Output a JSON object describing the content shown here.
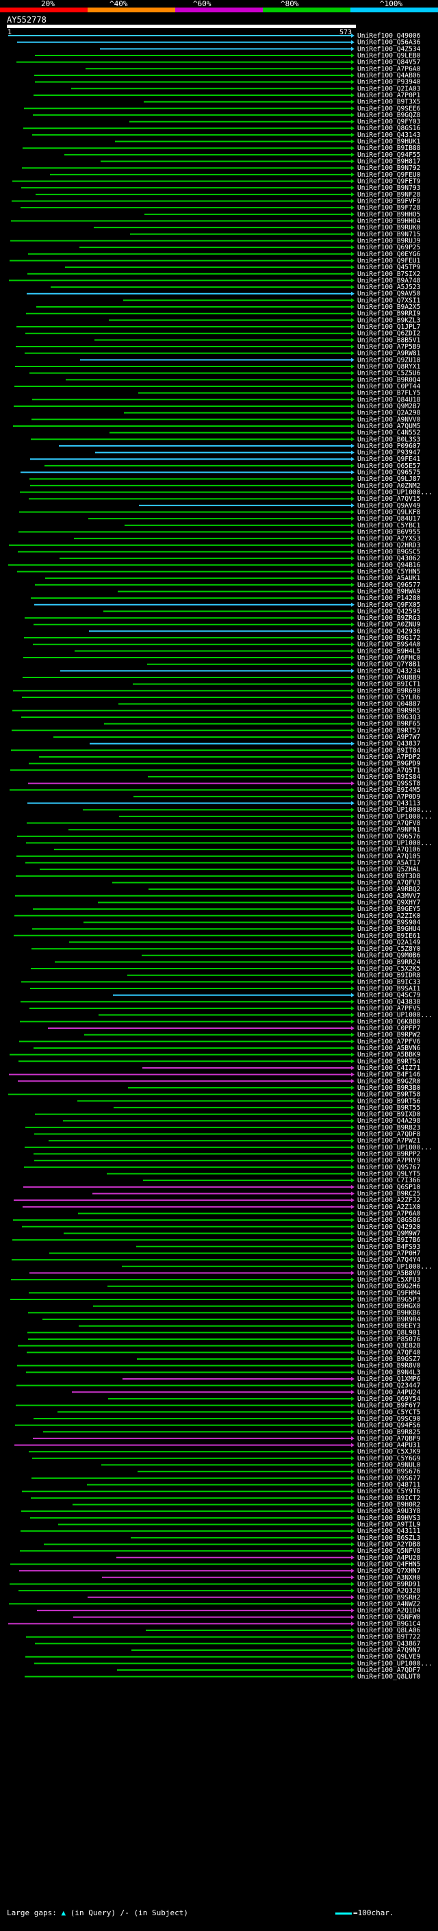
{
  "header": {
    "query_id": "AY552778",
    "query_start": "1",
    "query_end": "573",
    "scale_labels": [
      "20%",
      "^40%",
      "^60%",
      "^80%",
      "^100%"
    ],
    "scale_colors": [
      "#ff0000",
      "#ff8800",
      "#cc00cc",
      "#00cc00",
      "#00ccff"
    ]
  },
  "legend": {
    "text_left": "Large gaps:",
    "marker": "▲",
    "in_query": "(in Query)",
    "slash_note": "/- (in Subject)",
    "scale_note": "=100char."
  },
  "hits": [
    {
      "id": "UniRef100_Q49006",
      "color": "cyan"
    },
    {
      "id": "UniRef100_Q56A36",
      "color": "cyan"
    },
    {
      "id": "UniRef100_Q4Z534",
      "color": "cyan"
    },
    {
      "id": "UniRef100_Q9LEB0",
      "color": "green"
    },
    {
      "id": "UniRef100_Q84V57",
      "color": "green"
    },
    {
      "id": "UniRef100_A7P6A0",
      "color": "green"
    },
    {
      "id": "UniRef100_Q4AB06",
      "color": "green"
    },
    {
      "id": "UniRef100_P93940",
      "color": "green"
    },
    {
      "id": "UniRef100_Q2IA03",
      "color": "green"
    },
    {
      "id": "UniRef100_A7P0P1",
      "color": "green"
    },
    {
      "id": "UniRef100_B9T3X5",
      "color": "green"
    },
    {
      "id": "UniRef100_Q9SEE6",
      "color": "green"
    },
    {
      "id": "UniRef100_B9GQZ8",
      "color": "green"
    },
    {
      "id": "UniRef100_Q9FY03",
      "color": "green"
    },
    {
      "id": "UniRef100_Q8GS16",
      "color": "green"
    },
    {
      "id": "UniRef100_Q43143",
      "color": "green"
    },
    {
      "id": "UniRef100_B9HUK1",
      "color": "green"
    },
    {
      "id": "UniRef100_B9IB88",
      "color": "green"
    },
    {
      "id": "UniRef100_Q94F55",
      "color": "green"
    },
    {
      "id": "UniRef100_B9H817",
      "color": "green"
    },
    {
      "id": "UniRef100_B9N792",
      "color": "green"
    },
    {
      "id": "UniRef100_Q9FEU0",
      "color": "green"
    },
    {
      "id": "UniRef100_Q9FET9",
      "color": "green"
    },
    {
      "id": "UniRef100_B9N793",
      "color": "green"
    },
    {
      "id": "UniRef100_B9NF28",
      "color": "green"
    },
    {
      "id": "UniRef100_B9FVF9",
      "color": "green"
    },
    {
      "id": "UniRef100_B9F728",
      "color": "green"
    },
    {
      "id": "UniRef100_B9HHO5",
      "color": "green"
    },
    {
      "id": "UniRef100_B9HHO4",
      "color": "green"
    },
    {
      "id": "UniRef100_B9RUK0",
      "color": "green"
    },
    {
      "id": "UniRef100_B9N715",
      "color": "green"
    },
    {
      "id": "UniRef100_B9RUJ9",
      "color": "green"
    },
    {
      "id": "UniRef100_Q69P25",
      "color": "green"
    },
    {
      "id": "UniRef100_Q0EYG6",
      "color": "green"
    },
    {
      "id": "UniRef100_Q9FEU1",
      "color": "green"
    },
    {
      "id": "UniRef100_Q45TP9",
      "color": "green"
    },
    {
      "id": "UniRef100_B7SIX2",
      "color": "green"
    },
    {
      "id": "UniRef100_B9A748",
      "color": "green"
    },
    {
      "id": "UniRef100_A5J523",
      "color": "green"
    },
    {
      "id": "UniRef100_Q9AV50",
      "color": "cyan"
    },
    {
      "id": "UniRef100_Q7XSI1",
      "color": "green"
    },
    {
      "id": "UniRef100_B9A2X5",
      "color": "green"
    },
    {
      "id": "UniRef100_B9RRI9",
      "color": "green"
    },
    {
      "id": "UniRef100_B9KZL3",
      "color": "green"
    },
    {
      "id": "UniRef100_Q1JPL7",
      "color": "green"
    },
    {
      "id": "UniRef100_Q6ZDI2",
      "color": "green"
    },
    {
      "id": "UniRef100_B8B5V1",
      "color": "green"
    },
    {
      "id": "UniRef100_A7P5B9",
      "color": "green"
    },
    {
      "id": "UniRef100_A9RW81",
      "color": "green"
    },
    {
      "id": "UniRef100_Q9ZU18",
      "color": "cyan"
    },
    {
      "id": "UniRef100_Q8RYX1",
      "color": "green"
    },
    {
      "id": "UniRef100_C5Z5U6",
      "color": "green"
    },
    {
      "id": "UniRef100_B9R0Q4",
      "color": "green"
    },
    {
      "id": "UniRef100_C0PT44",
      "color": "green"
    },
    {
      "id": "UniRef100_B7FLY5",
      "color": "green"
    },
    {
      "id": "UniRef100_Q84U18",
      "color": "green"
    },
    {
      "id": "UniRef100_Q9M2B7",
      "color": "green"
    },
    {
      "id": "UniRef100_Q2A298",
      "color": "green"
    },
    {
      "id": "UniRef100_A9NVV0",
      "color": "green"
    },
    {
      "id": "UniRef100_A7QUM5",
      "color": "green"
    },
    {
      "id": "UniRef100_C4N552",
      "color": "green"
    },
    {
      "id": "UniRef100_B0L3S3",
      "color": "green"
    },
    {
      "id": "UniRef100_P09607",
      "color": "cyan"
    },
    {
      "id": "UniRef100_P93947",
      "color": "cyan"
    },
    {
      "id": "UniRef100_Q9FE41",
      "color": "cyan"
    },
    {
      "id": "UniRef100_O65E57",
      "color": "green"
    },
    {
      "id": "UniRef100_Q96575",
      "color": "cyan"
    },
    {
      "id": "UniRef100_Q9LJ87",
      "color": "green"
    },
    {
      "id": "UniRef100_A0ZNM2",
      "color": "green"
    },
    {
      "id": "UniRef100_UP1000...",
      "color": "green"
    },
    {
      "id": "UniRef100_A7QV15",
      "color": "green"
    },
    {
      "id": "UniRef100_Q9AV49",
      "color": "cyan"
    },
    {
      "id": "UniRef100_Q9LKF8",
      "color": "green"
    },
    {
      "id": "UniRef100_Q84U17",
      "color": "green"
    },
    {
      "id": "UniRef100_C5YBC1",
      "color": "green"
    },
    {
      "id": "UniRef100_B6V955",
      "color": "green"
    },
    {
      "id": "UniRef100_A2YXS3",
      "color": "green"
    },
    {
      "id": "UniRef100_Q2HRD3",
      "color": "green"
    },
    {
      "id": "UniRef100_B9GSC5",
      "color": "green"
    },
    {
      "id": "UniRef100_Q43062",
      "color": "green"
    },
    {
      "id": "UniRef100_Q94B16",
      "color": "green"
    },
    {
      "id": "UniRef100_C5YHN5",
      "color": "green"
    },
    {
      "id": "UniRef100_A5AUK1",
      "color": "green"
    },
    {
      "id": "UniRef100_Q96577",
      "color": "green"
    },
    {
      "id": "UniRef100_B9HWA9",
      "color": "green"
    },
    {
      "id": "UniRef100_P14280",
      "color": "green"
    },
    {
      "id": "UniRef100_Q9FX05",
      "color": "cyan"
    },
    {
      "id": "UniRef100_Q42595",
      "color": "green"
    },
    {
      "id": "UniRef100_B9ZRG3",
      "color": "green"
    },
    {
      "id": "UniRef100_A0ZNU9",
      "color": "green"
    },
    {
      "id": "UniRef100_Q42936",
      "color": "cyan"
    },
    {
      "id": "UniRef100_B9G172",
      "color": "green"
    },
    {
      "id": "UniRef100_B9S4A0",
      "color": "green"
    },
    {
      "id": "UniRef100_B9H4L5",
      "color": "green"
    },
    {
      "id": "UniRef100_A6FHC0",
      "color": "green"
    },
    {
      "id": "UniRef100_Q7Y8B1",
      "color": "green"
    },
    {
      "id": "UniRef100_Q43234",
      "color": "cyan"
    },
    {
      "id": "UniRef100_A9U8B9",
      "color": "green"
    },
    {
      "id": "UniRef100_B9ICT1",
      "color": "green"
    },
    {
      "id": "UniRef100_B9R690",
      "color": "green"
    },
    {
      "id": "UniRef100_C5YLR6",
      "color": "green"
    },
    {
      "id": "UniRef100_Q04887",
      "color": "green"
    },
    {
      "id": "UniRef100_B9R9R5",
      "color": "green"
    },
    {
      "id": "UniRef100_B9G3Q3",
      "color": "green"
    },
    {
      "id": "UniRef100_B9RF65",
      "color": "green"
    },
    {
      "id": "UniRef100_B9RT57",
      "color": "green"
    },
    {
      "id": "UniRef100_A9P7W7",
      "color": "green"
    },
    {
      "id": "UniRef100_Q43837",
      "color": "cyan"
    },
    {
      "id": "UniRef100_B9IT84",
      "color": "green"
    },
    {
      "id": "UniRef100_A7PDP2",
      "color": "green"
    },
    {
      "id": "UniRef100_B9GPD9",
      "color": "green"
    },
    {
      "id": "UniRef100_A7Q5T1",
      "color": "green"
    },
    {
      "id": "UniRef100_B9IS84",
      "color": "green"
    },
    {
      "id": "UniRef100_Q9SST8",
      "color": "magenta"
    },
    {
      "id": "UniRef100_B9I4M5",
      "color": "green"
    },
    {
      "id": "UniRef100_A7P0D9",
      "color": "green"
    },
    {
      "id": "UniRef100_Q43113",
      "color": "cyan"
    },
    {
      "id": "UniRef100_UP1000...",
      "color": "green"
    },
    {
      "id": "UniRef100_UP1000...",
      "color": "green"
    },
    {
      "id": "UniRef100_A7QFV8",
      "color": "green"
    },
    {
      "id": "UniRef100_A9NFN1",
      "color": "green"
    },
    {
      "id": "UniRef100_Q96576",
      "color": "green"
    },
    {
      "id": "UniRef100_UP1000...",
      "color": "green"
    },
    {
      "id": "UniRef100_A7Q106",
      "color": "green"
    },
    {
      "id": "UniRef100_A7Q105",
      "color": "green"
    },
    {
      "id": "UniRef100_A5AT17",
      "color": "green"
    },
    {
      "id": "UniRef100_Q5ZHAL",
      "color": "green"
    },
    {
      "id": "UniRef100_B9T3D8",
      "color": "green"
    },
    {
      "id": "UniRef100_A7QFV3",
      "color": "green"
    },
    {
      "id": "UniRef100_A9RBQ2",
      "color": "green"
    },
    {
      "id": "UniRef100_A3MVV7",
      "color": "green"
    },
    {
      "id": "UniRef100_Q9XHY7",
      "color": "green"
    },
    {
      "id": "UniRef100_B9GEY5",
      "color": "green"
    },
    {
      "id": "UniRef100_A2ZIK0",
      "color": "green"
    },
    {
      "id": "UniRef100_B9S904",
      "color": "green"
    },
    {
      "id": "UniRef100_B9GHU4",
      "color": "green"
    },
    {
      "id": "UniRef100_B9IE61",
      "color": "green"
    },
    {
      "id": "UniRef100_Q2A149",
      "color": "green"
    },
    {
      "id": "UniRef100_C5Z8Y0",
      "color": "green"
    },
    {
      "id": "UniRef100_Q9M0B6",
      "color": "green"
    },
    {
      "id": "UniRef100_B9RR24",
      "color": "green"
    },
    {
      "id": "UniRef100_C5X2K5",
      "color": "green"
    },
    {
      "id": "UniRef100_B9IDR8",
      "color": "green"
    },
    {
      "id": "UniRef100_B9IC33",
      "color": "green"
    },
    {
      "id": "UniRef100_B9SAI1",
      "color": "green"
    },
    {
      "id": "UniRef100_Q4SC79",
      "color": "cyan"
    },
    {
      "id": "UniRef100_Q43838",
      "color": "green"
    },
    {
      "id": "UniRef100_A7PFV5",
      "color": "green"
    },
    {
      "id": "UniRef100_UP1000...",
      "color": "green"
    },
    {
      "id": "UniRef100_Q6K8B0",
      "color": "green"
    },
    {
      "id": "UniRef100_C0PFP7",
      "color": "magenta"
    },
    {
      "id": "UniRef100_B9RPW2",
      "color": "green"
    },
    {
      "id": "UniRef100_A7PFV6",
      "color": "green"
    },
    {
      "id": "UniRef100_A5BVN6",
      "color": "green"
    },
    {
      "id": "UniRef100_A5BBK9",
      "color": "green"
    },
    {
      "id": "UniRef100_B9RT54",
      "color": "green"
    },
    {
      "id": "UniRef100_C4IZ71",
      "color": "magenta"
    },
    {
      "id": "UniRef100_B4F146",
      "color": "magenta"
    },
    {
      "id": "UniRef100_B9GZR0",
      "color": "magenta"
    },
    {
      "id": "UniRef100_B9R3B0",
      "color": "green"
    },
    {
      "id": "UniRef100_B9RT58",
      "color": "green"
    },
    {
      "id": "UniRef100_B9RT56",
      "color": "green"
    },
    {
      "id": "UniRef100_B9RT55",
      "color": "green"
    },
    {
      "id": "UniRef100_B9IXD0",
      "color": "green"
    },
    {
      "id": "UniRef100_Q4A298",
      "color": "green"
    },
    {
      "id": "UniRef100_B9R823",
      "color": "green"
    },
    {
      "id": "UniRef100_A7QDF8",
      "color": "green"
    },
    {
      "id": "UniRef100_A7PW21",
      "color": "green"
    },
    {
      "id": "UniRef100_UP1000...",
      "color": "green"
    },
    {
      "id": "UniRef100_B9RPP2",
      "color": "green"
    },
    {
      "id": "UniRef100_A7PRY9",
      "color": "green"
    },
    {
      "id": "UniRef100_Q9S767",
      "color": "green"
    },
    {
      "id": "UniRef100_Q9LYT5",
      "color": "green"
    },
    {
      "id": "UniRef100_C7I366",
      "color": "green"
    },
    {
      "id": "UniRef100_Q6SP10",
      "color": "magenta"
    },
    {
      "id": "UniRef100_B9RC25",
      "color": "magenta"
    },
    {
      "id": "UniRef100_A2ZFJ2",
      "color": "magenta"
    },
    {
      "id": "UniRef100_A2Z1X0",
      "color": "magenta"
    },
    {
      "id": "UniRef100_A7P6A0",
      "color": "green"
    },
    {
      "id": "UniRef100_Q8GS86",
      "color": "green"
    },
    {
      "id": "UniRef100_Q42920",
      "color": "green"
    },
    {
      "id": "UniRef100_Q9M9W7",
      "color": "green"
    },
    {
      "id": "UniRef100_B9I7B6",
      "color": "green"
    },
    {
      "id": "UniRef100_B4FS93",
      "color": "green"
    },
    {
      "id": "UniRef100_A7P0H7",
      "color": "green"
    },
    {
      "id": "UniRef100_A7Q4Y4",
      "color": "green"
    },
    {
      "id": "UniRef100_UP1000...",
      "color": "green"
    },
    {
      "id": "UniRef100_A5B8V9",
      "color": "magenta"
    },
    {
      "id": "UniRef100_C5XFU3",
      "color": "green"
    },
    {
      "id": "UniRef100_B9G2H6",
      "color": "green"
    },
    {
      "id": "UniRef100_Q9FHM4",
      "color": "green"
    },
    {
      "id": "UniRef100_B9G5P3",
      "color": "green"
    },
    {
      "id": "UniRef100_B9HGX0",
      "color": "green"
    },
    {
      "id": "UniRef100_B9HKB6",
      "color": "green"
    },
    {
      "id": "UniRef100_B9R9R4",
      "color": "green"
    },
    {
      "id": "UniRef100_B9EEY3",
      "color": "green"
    },
    {
      "id": "UniRef100_Q8L901",
      "color": "green"
    },
    {
      "id": "UniRef100_P85076",
      "color": "green"
    },
    {
      "id": "UniRef100_Q3E828",
      "color": "green"
    },
    {
      "id": "UniRef100_A7QF40",
      "color": "green"
    },
    {
      "id": "UniRef100_B9GSZ7",
      "color": "green"
    },
    {
      "id": "UniRef100_B9R8V0",
      "color": "green"
    },
    {
      "id": "UniRef100_B9N4L3",
      "color": "green"
    },
    {
      "id": "UniRef100_Q1XMP6",
      "color": "magenta"
    },
    {
      "id": "UniRef100_Q23447",
      "color": "green"
    },
    {
      "id": "UniRef100_A4PU24",
      "color": "magenta"
    },
    {
      "id": "UniRef100_Q69Y54",
      "color": "green"
    },
    {
      "id": "UniRef100_B9F6Y7",
      "color": "green"
    },
    {
      "id": "UniRef100_C5YCT5",
      "color": "green"
    },
    {
      "id": "UniRef100_Q9SC90",
      "color": "green"
    },
    {
      "id": "UniRef100_Q94FS6",
      "color": "green"
    },
    {
      "id": "UniRef100_B9R825",
      "color": "green"
    },
    {
      "id": "UniRef100_A7QBF9",
      "color": "magenta"
    },
    {
      "id": "UniRef100_A4PU31",
      "color": "magenta"
    },
    {
      "id": "UniRef100_C5XJK9",
      "color": "green"
    },
    {
      "id": "UniRef100_C5Y6G9",
      "color": "green"
    },
    {
      "id": "UniRef100_A9NUL0",
      "color": "green"
    },
    {
      "id": "UniRef100_B9S676",
      "color": "green"
    },
    {
      "id": "UniRef100_Q9S677",
      "color": "green"
    },
    {
      "id": "UniRef100_Q48711",
      "color": "green"
    },
    {
      "id": "UniRef100_C5Y9T6",
      "color": "green"
    },
    {
      "id": "UniRef100_B9ICT2",
      "color": "green"
    },
    {
      "id": "UniRef100_B9H0R2",
      "color": "green"
    },
    {
      "id": "UniRef100_A9U3Y8",
      "color": "green"
    },
    {
      "id": "UniRef100_B9HVS3",
      "color": "green"
    },
    {
      "id": "UniRef100_A9TIL9",
      "color": "green"
    },
    {
      "id": "UniRef100_Q43111",
      "color": "green"
    },
    {
      "id": "UniRef100_B6SZL3",
      "color": "green"
    },
    {
      "id": "UniRef100_A2YDB8",
      "color": "green"
    },
    {
      "id": "UniRef100_Q5NFV8",
      "color": "green"
    },
    {
      "id": "UniRef100_A4PU28",
      "color": "magenta"
    },
    {
      "id": "UniRef100_Q4FHN5",
      "color": "green"
    },
    {
      "id": "UniRef100_Q7XHN7",
      "color": "magenta"
    },
    {
      "id": "UniRef100_A3NXH0",
      "color": "magenta"
    },
    {
      "id": "UniRef100_B9RD91",
      "color": "green"
    },
    {
      "id": "UniRef100_A2Q328",
      "color": "green"
    },
    {
      "id": "UniRef100_B9SRH2",
      "color": "magenta"
    },
    {
      "id": "UniRef100_A4NWZ2",
      "color": "green"
    },
    {
      "id": "UniRef100_A2Q1D4",
      "color": "magenta"
    },
    {
      "id": "UniRef100_Q5NFW0",
      "color": "magenta"
    },
    {
      "id": "UniRef100_B9G1C4",
      "color": "magenta"
    },
    {
      "id": "UniRef100_Q8LA06",
      "color": "green"
    },
    {
      "id": "UniRef100_B9T722",
      "color": "green"
    },
    {
      "id": "UniRef100_Q43867",
      "color": "green"
    },
    {
      "id": "UniRef100_A7Q9N7",
      "color": "green"
    },
    {
      "id": "UniRef100_Q9LVE9",
      "color": "green"
    },
    {
      "id": "UniRef100_UP1000...",
      "color": "green"
    },
    {
      "id": "UniRef100_A7QDF7",
      "color": "green"
    },
    {
      "id": "UniRef100_Q8LUT0",
      "color": "green"
    }
  ]
}
